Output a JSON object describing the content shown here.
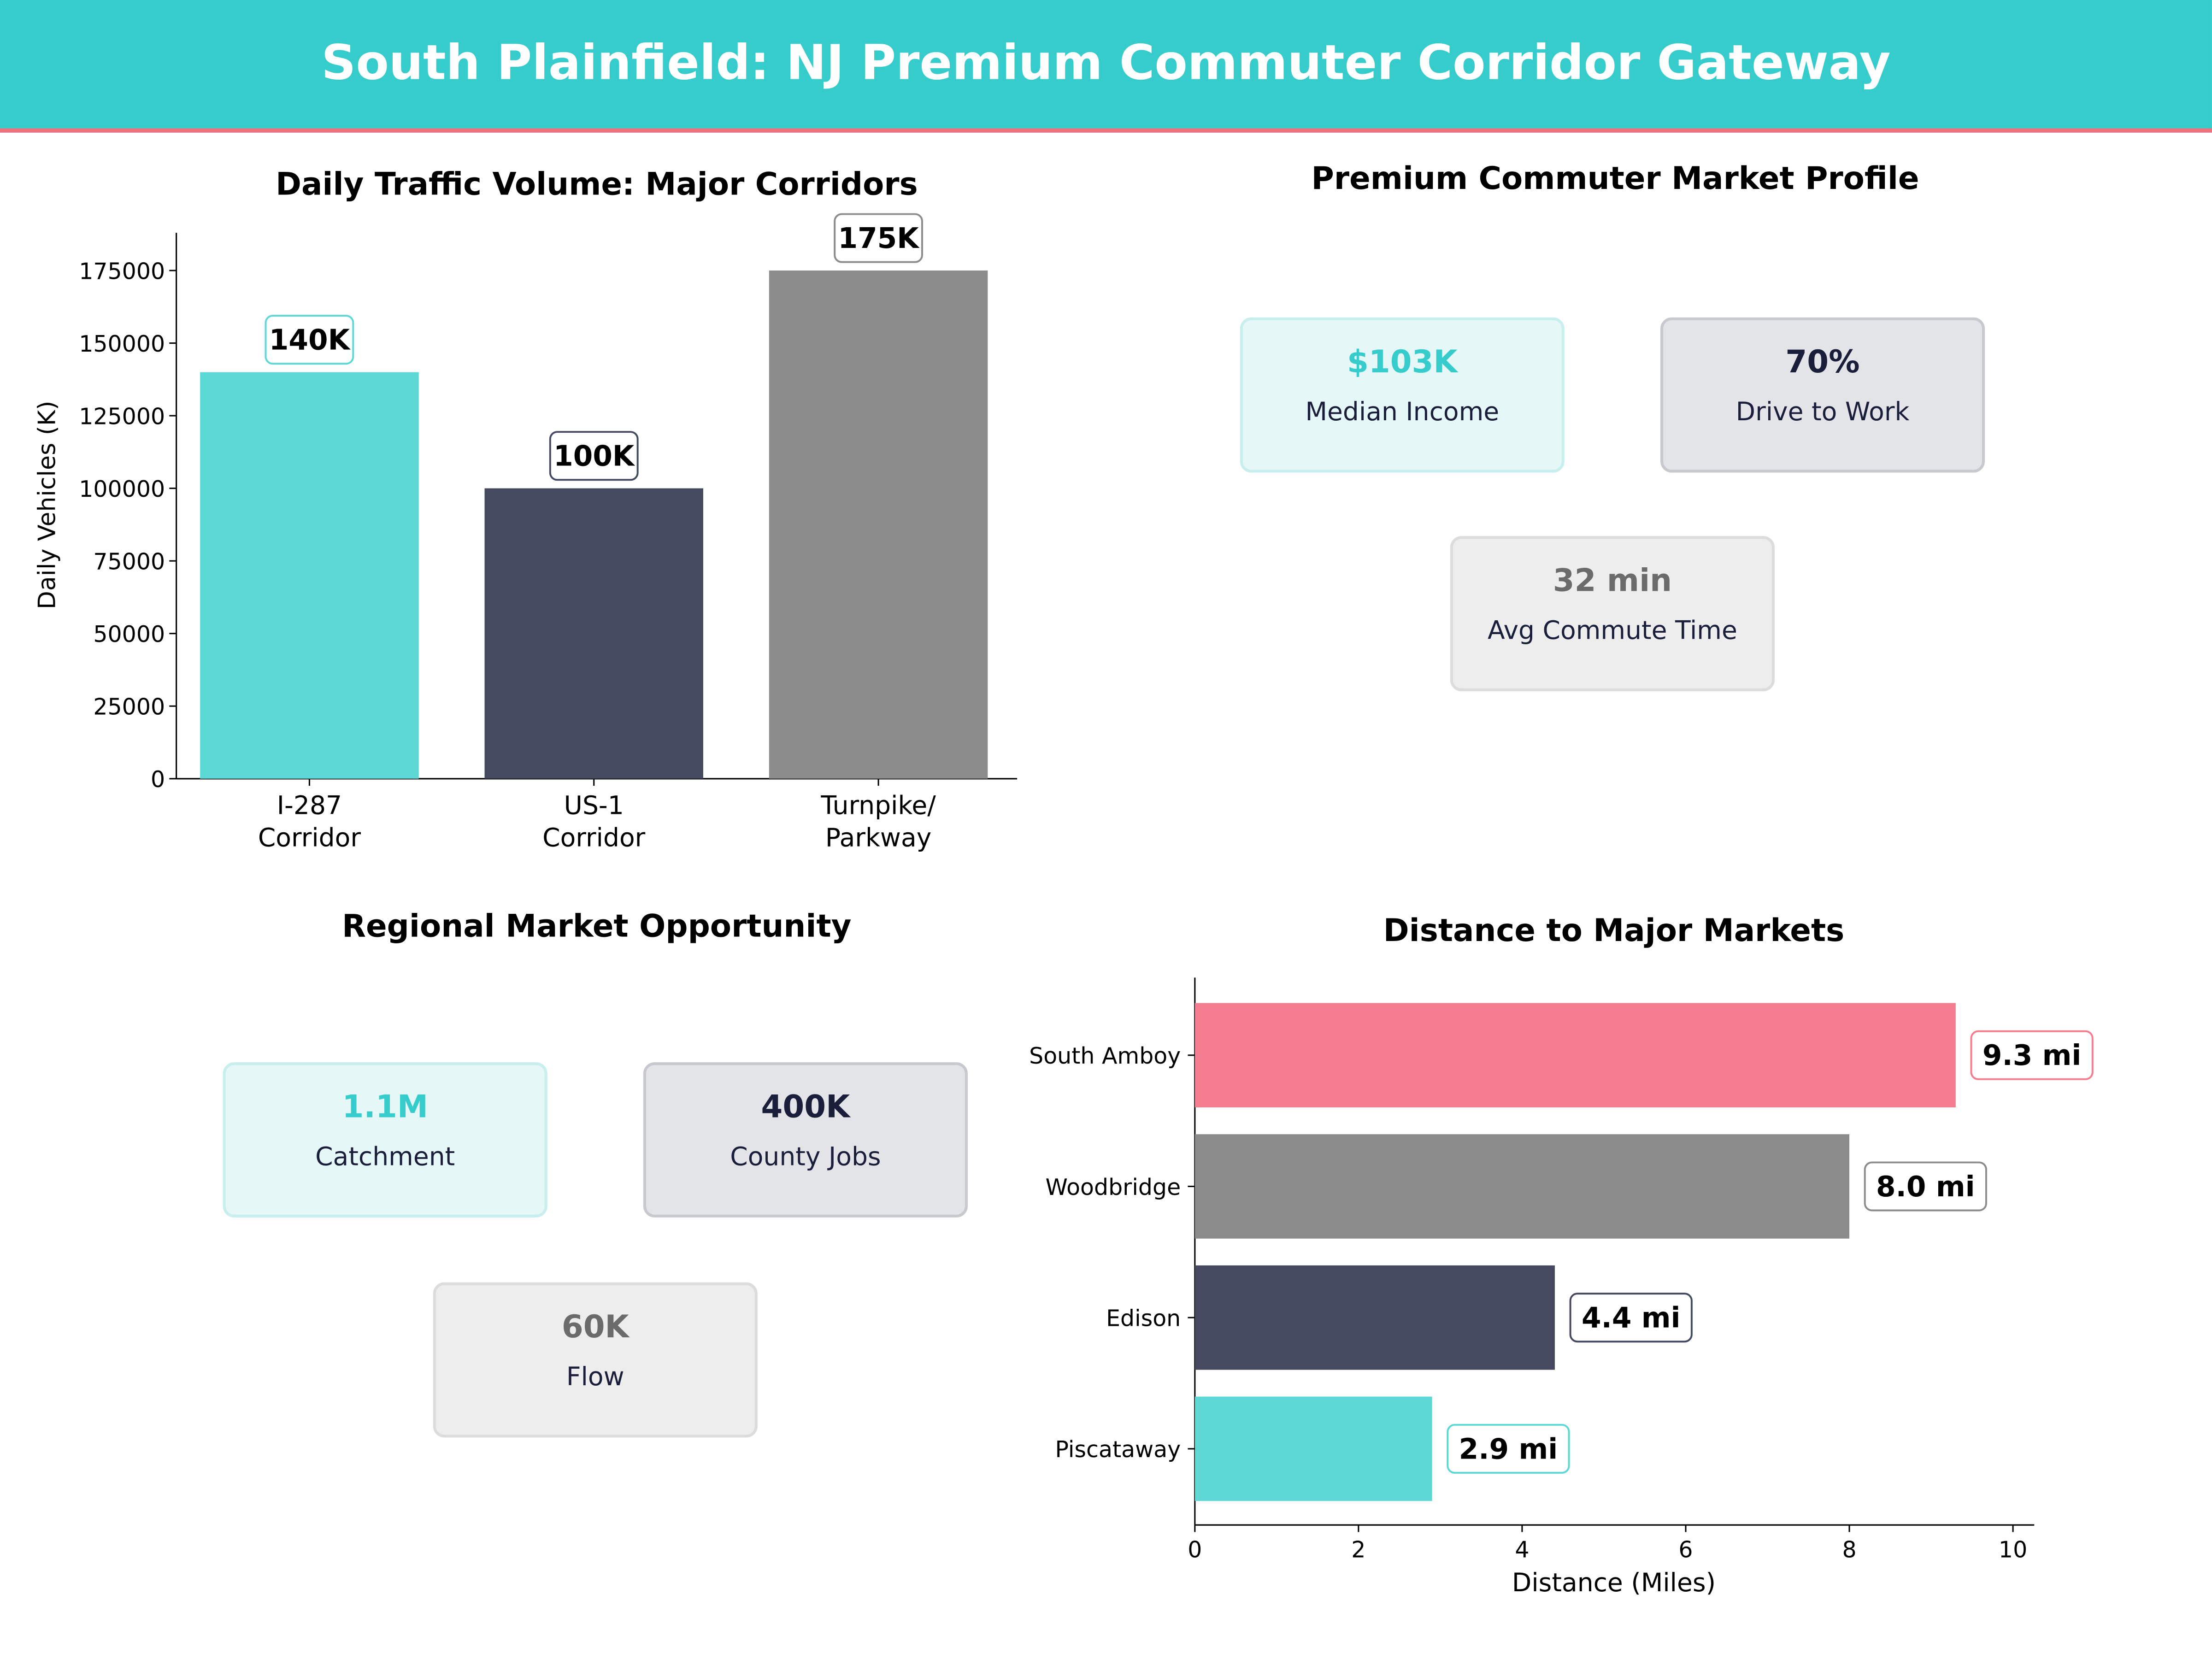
{
  "title": "South Plainfield: NJ Premium Commuter Corridor Gateway",
  "colors": {
    "teal": "#36CCCC",
    "accent_line": "#F07080"
  },
  "chart_data": [
    {
      "type": "bar",
      "title": "Daily Traffic Volume: Major Corridors",
      "xlabel": "",
      "ylabel": "Daily Vehicles (K)",
      "categories": [
        "I-287\nCorridor",
        "US-1\nCorridor",
        "Turnpike/\nParkway"
      ],
      "values": [
        140000,
        100000,
        175000
      ],
      "data_labels": [
        "140K",
        "100K",
        "175K"
      ],
      "colors": [
        "#5DD8D4",
        "#464A60",
        "#8C8C8C"
      ],
      "yticks": [
        0,
        25000,
        50000,
        75000,
        100000,
        125000,
        150000,
        175000
      ],
      "ylim": [
        0,
        188000
      ],
      "grid": false
    },
    {
      "type": "bar",
      "orientation": "horizontal",
      "title": "Distance to Major Markets",
      "xlabel": "Distance (Miles)",
      "ylabel": "",
      "categories": [
        "South Amboy",
        "Woodbridge",
        "Edison",
        "Piscataway"
      ],
      "values": [
        9.3,
        8.0,
        4.4,
        2.9
      ],
      "data_labels": [
        "9.3 mi",
        "8.0 mi",
        "4.4 mi",
        "2.9 mi"
      ],
      "colors": [
        "#F47E90",
        "#8C8C8C",
        "#464A60",
        "#5DD8D4"
      ],
      "xticks": [
        0,
        2,
        4,
        6,
        8,
        10
      ],
      "xlim": [
        0,
        10.26
      ],
      "grid": false
    }
  ],
  "profile": {
    "title": "Premium Commuter Market Profile",
    "cards": [
      {
        "value": "$103K",
        "label": "Median Income"
      },
      {
        "value": "70%",
        "label": "Drive to Work"
      },
      {
        "value": "32 min",
        "label": "Avg Commute Time"
      }
    ]
  },
  "regional": {
    "title": "Regional Market Opportunity",
    "cards": [
      {
        "value": "1.1M",
        "label": "Catchment"
      },
      {
        "value": "400K",
        "label": "County Jobs"
      },
      {
        "value": "60K",
        "label": "Flow"
      }
    ]
  }
}
